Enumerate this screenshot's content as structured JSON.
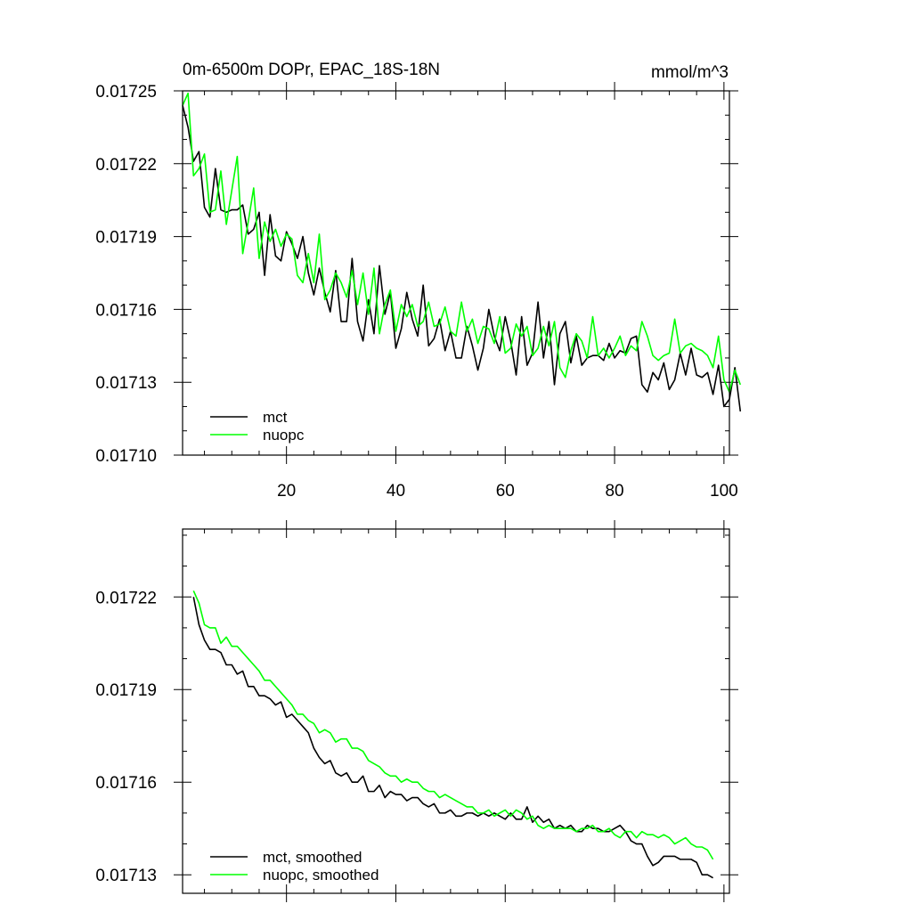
{
  "chart_data": [
    {
      "type": "line",
      "title_left": "0m-6500m DOPr, EPAC_18S-18N",
      "title_right": "mmol/m^3",
      "xlim": [
        1,
        101
      ],
      "ylim": [
        0.0171,
        0.01725
      ],
      "xticks": [
        20,
        40,
        60,
        80,
        100
      ],
      "xtick_labels": [
        "20",
        "40",
        "60",
        "80",
        "100"
      ],
      "yticks": [
        0.0171,
        0.01713,
        0.01716,
        0.01719,
        0.01722,
        0.01725
      ],
      "ytick_labels": [
        "0.01710",
        "0.01713",
        "0.01716",
        "0.01719",
        "0.01722",
        "0.01725"
      ],
      "legend_position": "bottom-left",
      "series": [
        {
          "name": "mct",
          "color": "#000000",
          "x_start": 1,
          "values": [
            0.017244,
            0.017235,
            0.017221,
            0.017225,
            0.017202,
            0.017198,
            0.017218,
            0.017201,
            0.0172,
            0.017201,
            0.017201,
            0.017203,
            0.017191,
            0.017193,
            0.0172,
            0.017174,
            0.017199,
            0.017182,
            0.01718,
            0.017192,
            0.017187,
            0.017181,
            0.01719,
            0.017175,
            0.017166,
            0.017177,
            0.017167,
            0.017159,
            0.017176,
            0.017155,
            0.017155,
            0.017181,
            0.017155,
            0.017147,
            0.017164,
            0.01715,
            0.017178,
            0.017158,
            0.017167,
            0.017144,
            0.017152,
            0.017167,
            0.017156,
            0.017149,
            0.01717,
            0.017145,
            0.017148,
            0.017156,
            0.017143,
            0.017151,
            0.01714,
            0.01714,
            0.017153,
            0.017145,
            0.017135,
            0.017144,
            0.01716,
            0.017149,
            0.017143,
            0.017157,
            0.017147,
            0.017133,
            0.017157,
            0.017137,
            0.017142,
            0.017163,
            0.01714,
            0.017155,
            0.017129,
            0.01715,
            0.017155,
            0.017138,
            0.017149,
            0.017137,
            0.01714,
            0.017141,
            0.017141,
            0.017139,
            0.017146,
            0.01714,
            0.017143,
            0.017142,
            0.017148,
            0.017149,
            0.017129,
            0.017126,
            0.017134,
            0.017131,
            0.017138,
            0.017127,
            0.017131,
            0.017142,
            0.017133,
            0.017144,
            0.017133,
            0.017132,
            0.017134,
            0.017125,
            0.017137,
            0.01712,
            0.017123,
            0.017136,
            0.017118
          ]
        },
        {
          "name": "nuopc",
          "color": "#00ff00",
          "x_start": 1,
          "values": [
            0.017244,
            0.017249,
            0.017215,
            0.017218,
            0.017224,
            0.0172,
            0.017201,
            0.017217,
            0.017195,
            0.017209,
            0.017223,
            0.017183,
            0.017196,
            0.01721,
            0.017181,
            0.017196,
            0.017188,
            0.017193,
            0.017186,
            0.017191,
            0.017189,
            0.017174,
            0.017171,
            0.017183,
            0.017171,
            0.017191,
            0.017164,
            0.017168,
            0.017175,
            0.017171,
            0.017165,
            0.017176,
            0.017162,
            0.017175,
            0.017158,
            0.017177,
            0.01715,
            0.017162,
            0.017168,
            0.017151,
            0.017162,
            0.017157,
            0.017162,
            0.017153,
            0.017155,
            0.017163,
            0.017153,
            0.017154,
            0.017161,
            0.017151,
            0.017149,
            0.017163,
            0.017151,
            0.017156,
            0.017146,
            0.017153,
            0.017152,
            0.017146,
            0.017157,
            0.017142,
            0.017144,
            0.017154,
            0.017149,
            0.017153,
            0.017141,
            0.017144,
            0.017153,
            0.017145,
            0.017155,
            0.017136,
            0.017132,
            0.017143,
            0.01715,
            0.017147,
            0.01714,
            0.017157,
            0.017141,
            0.017144,
            0.01714,
            0.017144,
            0.017149,
            0.017141,
            0.017145,
            0.017143,
            0.017155,
            0.017149,
            0.017141,
            0.017139,
            0.017141,
            0.017142,
            0.017156,
            0.017142,
            0.017145,
            0.017146,
            0.017144,
            0.017143,
            0.017141,
            0.017136,
            0.017149,
            0.017131,
            0.017126,
            0.017135,
            0.017129
          ]
        }
      ],
      "legend_entries": [
        "mct",
        "nuopc"
      ]
    },
    {
      "type": "line",
      "xlim": [
        1,
        101
      ],
      "ylim": [
        0.017124,
        0.017242
      ],
      "xticks": [
        20,
        40,
        60,
        80,
        100
      ],
      "yticks": [
        0.01713,
        0.01716,
        0.01719,
        0.01722
      ],
      "ytick_labels": [
        "0.01713",
        "0.01716",
        "0.01719",
        "0.01722"
      ],
      "legend_position": "bottom-left",
      "series": [
        {
          "name": "mct, smoothed",
          "color": "#000000",
          "x_start": 3,
          "values": [
            0.01722,
            0.017211,
            0.017206,
            0.017203,
            0.017203,
            0.017202,
            0.017198,
            0.017198,
            0.017195,
            0.017196,
            0.017191,
            0.017191,
            0.017188,
            0.017188,
            0.017187,
            0.017185,
            0.017186,
            0.017181,
            0.017182,
            0.01718,
            0.017178,
            0.017176,
            0.017171,
            0.017168,
            0.017166,
            0.017167,
            0.017163,
            0.017162,
            0.017163,
            0.01716,
            0.01716,
            0.017162,
            0.017157,
            0.017157,
            0.017159,
            0.017155,
            0.017157,
            0.017156,
            0.017156,
            0.017154,
            0.017155,
            0.017155,
            0.017153,
            0.017152,
            0.017153,
            0.01715,
            0.01715,
            0.017151,
            0.017149,
            0.017149,
            0.01715,
            0.01715,
            0.017149,
            0.01715,
            0.017149,
            0.01715,
            0.017149,
            0.017148,
            0.01715,
            0.017148,
            0.017148,
            0.017152,
            0.017147,
            0.017149,
            0.017147,
            0.017148,
            0.017145,
            0.017146,
            0.017145,
            0.017146,
            0.017144,
            0.017144,
            0.017146,
            0.017145,
            0.017145,
            0.017144,
            0.017144,
            0.017145,
            0.017146,
            0.017144,
            0.017141,
            0.01714,
            0.01714,
            0.017136,
            0.017133,
            0.017134,
            0.017136,
            0.017136,
            0.017136,
            0.017135,
            0.017135,
            0.017135,
            0.017134,
            0.01713,
            0.01713,
            0.017129
          ]
        },
        {
          "name": "nuopc, smoothed",
          "color": "#00ff00",
          "x_start": 3,
          "values": [
            0.017222,
            0.017218,
            0.017211,
            0.01721,
            0.01721,
            0.017205,
            0.017207,
            0.017204,
            0.017204,
            0.017202,
            0.0172,
            0.017198,
            0.017196,
            0.017193,
            0.017193,
            0.017191,
            0.017189,
            0.017187,
            0.017185,
            0.017182,
            0.017182,
            0.01718,
            0.017179,
            0.017176,
            0.017177,
            0.017176,
            0.017173,
            0.017174,
            0.017174,
            0.017171,
            0.017171,
            0.01717,
            0.017167,
            0.017166,
            0.017165,
            0.017163,
            0.017162,
            0.017162,
            0.01716,
            0.017161,
            0.01716,
            0.01716,
            0.017158,
            0.017157,
            0.017157,
            0.017155,
            0.017156,
            0.017155,
            0.017154,
            0.017153,
            0.017152,
            0.017152,
            0.01715,
            0.01715,
            0.017151,
            0.017149,
            0.01715,
            0.017151,
            0.017149,
            0.017151,
            0.01715,
            0.017148,
            0.017149,
            0.017146,
            0.017145,
            0.017146,
            0.017145,
            0.017145,
            0.017145,
            0.017145,
            0.017144,
            0.017145,
            0.017145,
            0.017146,
            0.017144,
            0.017144,
            0.017145,
            0.017143,
            0.017142,
            0.017144,
            0.017144,
            0.017142,
            0.017144,
            0.017143,
            0.017143,
            0.017142,
            0.017143,
            0.017142,
            0.01714,
            0.017141,
            0.017142,
            0.01714,
            0.017139,
            0.017139,
            0.017138,
            0.017135
          ]
        }
      ],
      "legend_entries": [
        "mct, smoothed",
        "nuopc, smoothed"
      ]
    }
  ]
}
